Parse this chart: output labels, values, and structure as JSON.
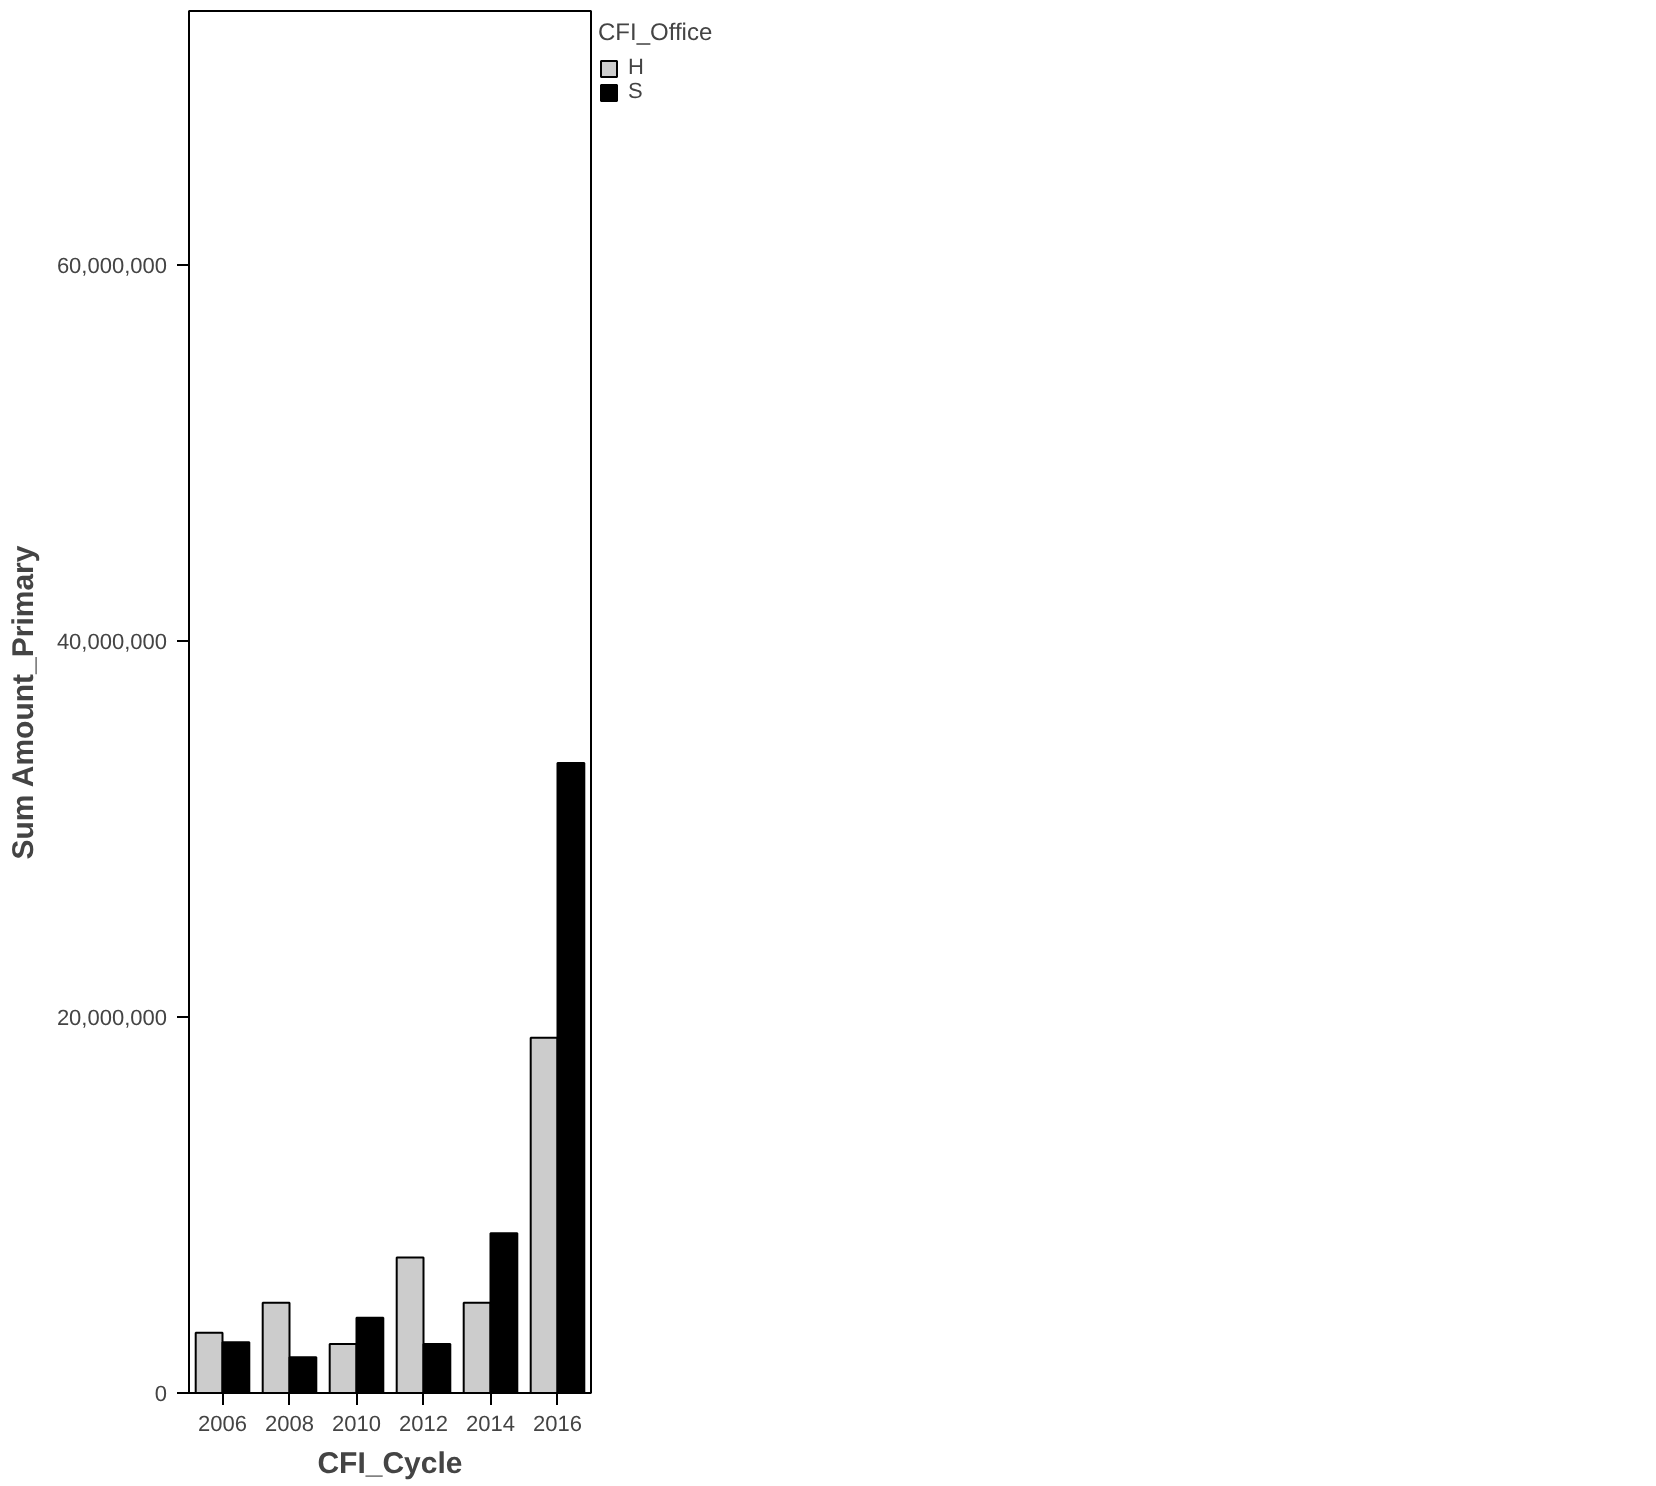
{
  "chart_data": {
    "type": "bar",
    "xlabel": "CFI_Cycle",
    "ylabel": "Sum Amount_Primary",
    "legend_title": "CFI_Office",
    "categories": [
      "2006",
      "2008",
      "2010",
      "2012",
      "2014",
      "2016"
    ],
    "series": [
      {
        "name": "H",
        "color": "#cccccc",
        "values": [
          3200000,
          4800000,
          2600000,
          7200000,
          4800000,
          18900000
        ]
      },
      {
        "name": "S",
        "color": "#000000",
        "values": [
          2700000,
          1900000,
          4000000,
          2600000,
          8500000,
          33500000
        ]
      }
    ],
    "ylim": [
      0,
      73500000
    ],
    "yticks": [
      {
        "value": 0,
        "label": "0"
      },
      {
        "value": 20000000,
        "label": "20,000,000"
      },
      {
        "value": 40000000,
        "label": "40,000,000"
      },
      {
        "value": 60000000,
        "label": "60,000,000"
      }
    ],
    "grid": false,
    "legend": "top right"
  }
}
